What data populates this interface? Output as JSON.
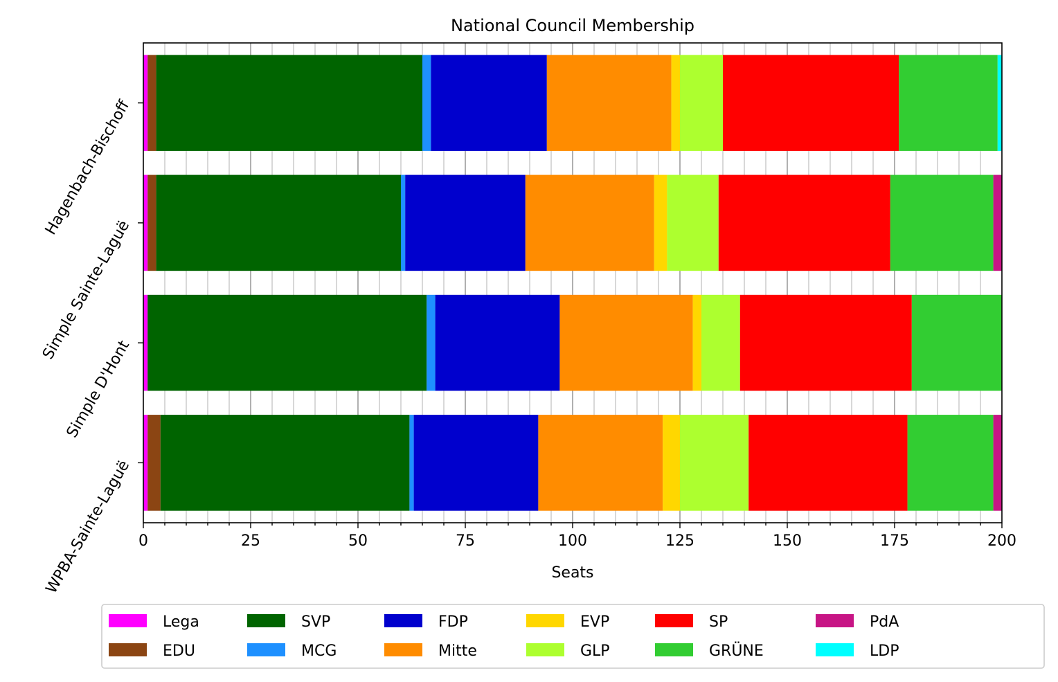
{
  "chart_data": {
    "type": "bar",
    "orientation": "horizontal",
    "stacked": true,
    "title": "National Council Membership",
    "xlabel": "Seats",
    "ylabel": "",
    "xlim": [
      0,
      200
    ],
    "x_ticks": [
      0,
      25,
      50,
      75,
      100,
      125,
      150,
      175,
      200
    ],
    "grid": "vertical major and minor gridlines",
    "legend_position": "bottom, outside plot, 7 columns",
    "categories": [
      "Hagenbach-Bischoff",
      "Simple Sainte-Laguë",
      "Simple D'Hont",
      "WPBA-Sainte-Laguë"
    ],
    "series": [
      {
        "name": "Lega",
        "color": "#ff00ff",
        "values": [
          1,
          1,
          1,
          1
        ]
      },
      {
        "name": "EDU",
        "color": "#8b4513",
        "values": [
          2,
          2,
          0,
          3
        ]
      },
      {
        "name": "SVP",
        "color": "#006400",
        "values": [
          62,
          57,
          65,
          58
        ]
      },
      {
        "name": "MCG",
        "color": "#1e90ff",
        "values": [
          2,
          1,
          2,
          1
        ]
      },
      {
        "name": "FDP",
        "color": "#0000cd",
        "values": [
          27,
          28,
          29,
          29
        ]
      },
      {
        "name": "Mitte",
        "color": "#ff8c00",
        "values": [
          29,
          30,
          31,
          29
        ]
      },
      {
        "name": "EVP",
        "color": "#ffd700",
        "values": [
          2,
          3,
          2,
          4
        ]
      },
      {
        "name": "GLP",
        "color": "#adff2f",
        "values": [
          10,
          12,
          9,
          16
        ]
      },
      {
        "name": "SP",
        "color": "#ff0000",
        "values": [
          41,
          40,
          40,
          37
        ]
      },
      {
        "name": "GRÜNE",
        "color": "#32cd32",
        "values": [
          23,
          24,
          21,
          20
        ]
      },
      {
        "name": "PdA",
        "color": "#c71585",
        "values": [
          0,
          2,
          0,
          2
        ]
      },
      {
        "name": "LDP",
        "color": "#00ffff",
        "values": [
          1,
          0,
          0,
          0
        ]
      }
    ]
  }
}
